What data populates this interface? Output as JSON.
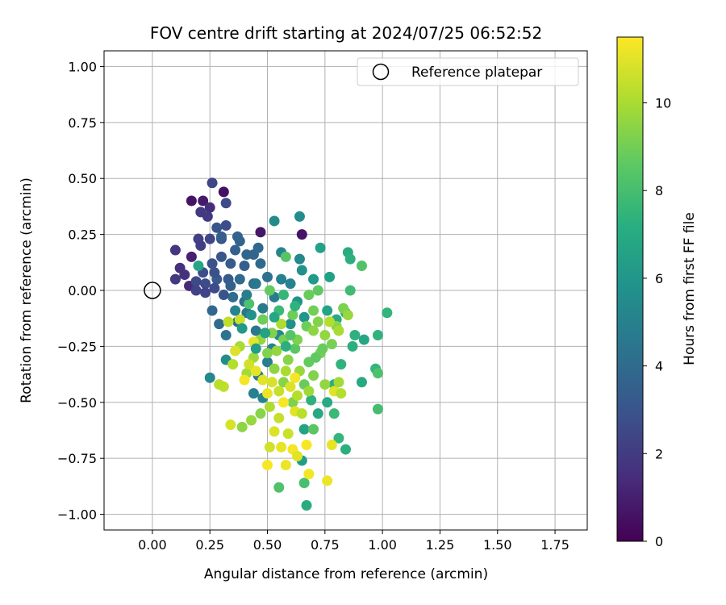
{
  "chart_data": {
    "type": "scatter",
    "title": "FOV centre drift starting at 2024/07/25 06:52:52",
    "xlabel": "Angular distance from reference (arcmin)",
    "ylabel": "Rotation from reference (arcmin)",
    "xlim": [
      -0.21,
      1.89
    ],
    "ylim": [
      -1.07,
      1.07
    ],
    "xticks": [
      0.0,
      0.25,
      0.5,
      0.75,
      1.0,
      1.25,
      1.5,
      1.75
    ],
    "xtick_labels": [
      "0.00",
      "0.25",
      "0.50",
      "0.75",
      "1.00",
      "1.25",
      "1.50",
      "1.75"
    ],
    "yticks": [
      1.0,
      0.75,
      0.5,
      0.25,
      0.0,
      -0.25,
      -0.5,
      -0.75,
      -1.0
    ],
    "ytick_labels": [
      "1.00",
      "0.75",
      "0.50",
      "0.25",
      "0.00",
      "−0.25",
      "−0.50",
      "−0.75",
      "−1.00"
    ],
    "grid": true,
    "legend": {
      "position": "top-right",
      "entries": [
        {
          "label": "Reference platepar",
          "marker": "open-circle"
        }
      ]
    },
    "reference_point": {
      "x": 0.0,
      "y": 0.0
    },
    "colorbar": {
      "label": "Hours from first FF file",
      "colormap": "viridis",
      "range": [
        0,
        11.5
      ],
      "ticks": [
        0,
        2,
        4,
        6,
        8,
        10
      ],
      "tick_labels": [
        "0",
        "2",
        "4",
        "6",
        "8",
        "10"
      ]
    },
    "points": [
      {
        "x": 0.17,
        "y": 0.4,
        "h": 0.6
      },
      {
        "x": 0.22,
        "y": 0.4,
        "h": 0.8
      },
      {
        "x": 0.31,
        "y": 0.44,
        "h": 0.5
      },
      {
        "x": 0.47,
        "y": 0.26,
        "h": 0.7
      },
      {
        "x": 0.65,
        "y": 0.25,
        "h": 0.6
      },
      {
        "x": 0.17,
        "y": 0.15,
        "h": 1.0
      },
      {
        "x": 0.16,
        "y": 0.02,
        "h": 1.3
      },
      {
        "x": 0.12,
        "y": 0.1,
        "h": 1.6
      },
      {
        "x": 0.1,
        "y": 0.18,
        "h": 1.8
      },
      {
        "x": 0.25,
        "y": 0.37,
        "h": 1.5
      },
      {
        "x": 0.24,
        "y": 0.33,
        "h": 2.0
      },
      {
        "x": 0.21,
        "y": 0.35,
        "h": 1.9
      },
      {
        "x": 0.26,
        "y": 0.48,
        "h": 2.4
      },
      {
        "x": 0.32,
        "y": 0.39,
        "h": 2.6
      },
      {
        "x": 0.2,
        "y": 0.23,
        "h": 2.2
      },
      {
        "x": 0.25,
        "y": 0.23,
        "h": 2.4
      },
      {
        "x": 0.21,
        "y": 0.2,
        "h": 2.1
      },
      {
        "x": 0.3,
        "y": 0.23,
        "h": 2.8
      },
      {
        "x": 0.32,
        "y": 0.29,
        "h": 2.7
      },
      {
        "x": 0.28,
        "y": 0.28,
        "h": 3.0
      },
      {
        "x": 0.1,
        "y": 0.05,
        "h": 1.9
      },
      {
        "x": 0.14,
        "y": 0.07,
        "h": 1.7
      },
      {
        "x": 0.19,
        "y": 0.0,
        "h": 2.3
      },
      {
        "x": 0.23,
        "y": 0.03,
        "h": 2.6
      },
      {
        "x": 0.26,
        "y": 0.12,
        "h": 2.9
      },
      {
        "x": 0.28,
        "y": 0.05,
        "h": 3.2
      },
      {
        "x": 0.33,
        "y": 0.05,
        "h": 3.3
      },
      {
        "x": 0.36,
        "y": 0.18,
        "h": 3.5
      },
      {
        "x": 0.38,
        "y": 0.22,
        "h": 3.6
      },
      {
        "x": 0.4,
        "y": 0.11,
        "h": 3.4
      },
      {
        "x": 0.44,
        "y": 0.16,
        "h": 3.7
      },
      {
        "x": 0.46,
        "y": 0.19,
        "h": 3.8
      },
      {
        "x": 0.44,
        "y": 0.03,
        "h": 4.0
      },
      {
        "x": 0.38,
        "y": 0.05,
        "h": 3.9
      },
      {
        "x": 0.35,
        "y": -0.03,
        "h": 4.1
      },
      {
        "x": 0.4,
        "y": -0.05,
        "h": 4.2
      },
      {
        "x": 0.26,
        "y": -0.09,
        "h": 3.8
      },
      {
        "x": 0.29,
        "y": -0.15,
        "h": 4.0
      },
      {
        "x": 0.32,
        "y": -0.2,
        "h": 4.4
      },
      {
        "x": 0.37,
        "y": -0.14,
        "h": 4.3
      },
      {
        "x": 0.41,
        "y": -0.1,
        "h": 4.5
      },
      {
        "x": 0.45,
        "y": -0.18,
        "h": 4.6
      },
      {
        "x": 0.48,
        "y": -0.08,
        "h": 4.7
      },
      {
        "x": 0.53,
        "y": -0.03,
        "h": 4.8
      },
      {
        "x": 0.56,
        "y": 0.05,
        "h": 5.0
      },
      {
        "x": 0.6,
        "y": 0.03,
        "h": 5.1
      },
      {
        "x": 0.56,
        "y": 0.17,
        "h": 5.2
      },
      {
        "x": 0.64,
        "y": 0.14,
        "h": 5.4
      },
      {
        "x": 0.64,
        "y": 0.33,
        "h": 5.6
      },
      {
        "x": 0.53,
        "y": 0.31,
        "h": 5.5
      },
      {
        "x": 0.65,
        "y": 0.09,
        "h": 5.8
      },
      {
        "x": 0.63,
        "y": -0.05,
        "h": 5.9
      },
      {
        "x": 0.66,
        "y": -0.12,
        "h": 6.0
      },
      {
        "x": 0.6,
        "y": -0.15,
        "h": 5.7
      },
      {
        "x": 0.55,
        "y": -0.2,
        "h": 5.3
      },
      {
        "x": 0.52,
        "y": -0.26,
        "h": 5.1
      },
      {
        "x": 0.5,
        "y": -0.32,
        "h": 4.9
      },
      {
        "x": 0.46,
        "y": -0.38,
        "h": 4.7
      },
      {
        "x": 0.44,
        "y": -0.46,
        "h": 5.0
      },
      {
        "x": 0.48,
        "y": -0.48,
        "h": 5.2
      },
      {
        "x": 0.25,
        "y": -0.39,
        "h": 5.4
      },
      {
        "x": 0.32,
        "y": -0.31,
        "h": 5.6
      },
      {
        "x": 0.7,
        "y": 0.05,
        "h": 6.2
      },
      {
        "x": 0.73,
        "y": 0.19,
        "h": 6.6
      },
      {
        "x": 0.77,
        "y": 0.06,
        "h": 6.5
      },
      {
        "x": 0.76,
        "y": -0.09,
        "h": 6.7
      },
      {
        "x": 0.8,
        "y": -0.13,
        "h": 6.9
      },
      {
        "x": 0.85,
        "y": 0.17,
        "h": 7.0
      },
      {
        "x": 0.86,
        "y": 0.14,
        "h": 7.2
      },
      {
        "x": 0.84,
        "y": -0.1,
        "h": 7.1
      },
      {
        "x": 0.88,
        "y": -0.2,
        "h": 7.3
      },
      {
        "x": 0.92,
        "y": -0.22,
        "h": 6.8
      },
      {
        "x": 0.98,
        "y": -0.2,
        "h": 7.4
      },
      {
        "x": 1.02,
        "y": -0.1,
        "h": 7.5
      },
      {
        "x": 0.97,
        "y": -0.35,
        "h": 7.6
      },
      {
        "x": 0.91,
        "y": -0.41,
        "h": 6.9
      },
      {
        "x": 0.87,
        "y": -0.25,
        "h": 7.2
      },
      {
        "x": 0.82,
        "y": -0.33,
        "h": 7.4
      },
      {
        "x": 0.79,
        "y": -0.42,
        "h": 7.1
      },
      {
        "x": 0.76,
        "y": -0.5,
        "h": 7.0
      },
      {
        "x": 0.72,
        "y": -0.55,
        "h": 6.9
      },
      {
        "x": 0.69,
        "y": -0.49,
        "h": 7.3
      },
      {
        "x": 0.66,
        "y": -0.62,
        "h": 6.6
      },
      {
        "x": 0.65,
        "y": -0.76,
        "h": 6.4
      },
      {
        "x": 0.67,
        "y": -0.96,
        "h": 7.0
      },
      {
        "x": 0.66,
        "y": -0.86,
        "h": 8.1
      },
      {
        "x": 0.55,
        "y": -0.88,
        "h": 8.3
      },
      {
        "x": 0.7,
        "y": -0.62,
        "h": 8.5
      },
      {
        "x": 0.79,
        "y": -0.55,
        "h": 7.8
      },
      {
        "x": 0.84,
        "y": -0.71,
        "h": 7.2
      },
      {
        "x": 0.81,
        "y": -0.66,
        "h": 7.6
      },
      {
        "x": 0.98,
        "y": -0.53,
        "h": 8.0
      },
      {
        "x": 0.98,
        "y": -0.37,
        "h": 8.2
      },
      {
        "x": 0.91,
        "y": 0.11,
        "h": 8.3
      },
      {
        "x": 0.86,
        "y": 0.0,
        "h": 7.9
      },
      {
        "x": 0.72,
        "y": 0.0,
        "h": 8.6
      },
      {
        "x": 0.68,
        "y": -0.02,
        "h": 8.8
      },
      {
        "x": 0.58,
        "y": 0.15,
        "h": 8.4
      },
      {
        "x": 0.51,
        "y": 0.0,
        "h": 8.7
      },
      {
        "x": 0.61,
        "y": -0.11,
        "h": 8.9
      },
      {
        "x": 0.57,
        "y": -0.22,
        "h": 9.1
      },
      {
        "x": 0.62,
        "y": -0.26,
        "h": 8.5
      },
      {
        "x": 0.68,
        "y": -0.32,
        "h": 8.7
      },
      {
        "x": 0.73,
        "y": -0.28,
        "h": 9.0
      },
      {
        "x": 0.66,
        "y": -0.42,
        "h": 8.8
      },
      {
        "x": 0.61,
        "y": -0.5,
        "h": 9.2
      },
      {
        "x": 0.57,
        "y": -0.41,
        "h": 9.4
      },
      {
        "x": 0.53,
        "y": -0.35,
        "h": 9.5
      },
      {
        "x": 0.5,
        "y": -0.28,
        "h": 9.3
      },
      {
        "x": 0.47,
        "y": -0.22,
        "h": 9.6
      },
      {
        "x": 0.44,
        "y": -0.3,
        "h": 9.8
      },
      {
        "x": 0.41,
        "y": -0.37,
        "h": 9.9
      },
      {
        "x": 0.38,
        "y": -0.25,
        "h": 10.0
      },
      {
        "x": 0.35,
        "y": -0.33,
        "h": 10.2
      },
      {
        "x": 0.31,
        "y": -0.43,
        "h": 10.4
      },
      {
        "x": 0.29,
        "y": -0.42,
        "h": 10.3
      },
      {
        "x": 0.34,
        "y": -0.6,
        "h": 10.8
      },
      {
        "x": 0.39,
        "y": -0.61,
        "h": 9.5
      },
      {
        "x": 0.43,
        "y": -0.58,
        "h": 9.7
      },
      {
        "x": 0.47,
        "y": -0.55,
        "h": 9.4
      },
      {
        "x": 0.51,
        "y": -0.52,
        "h": 10.1
      },
      {
        "x": 0.55,
        "y": -0.57,
        "h": 10.5
      },
      {
        "x": 0.53,
        "y": -0.63,
        "h": 10.9
      },
      {
        "x": 0.56,
        "y": -0.7,
        "h": 11.1
      },
      {
        "x": 0.61,
        "y": -0.71,
        "h": 11.3
      },
      {
        "x": 0.63,
        "y": -0.74,
        "h": 11.0
      },
      {
        "x": 0.58,
        "y": -0.78,
        "h": 11.2
      },
      {
        "x": 0.5,
        "y": -0.78,
        "h": 11.4
      },
      {
        "x": 0.51,
        "y": -0.7,
        "h": 10.7
      },
      {
        "x": 0.68,
        "y": -0.82,
        "h": 11.3
      },
      {
        "x": 0.76,
        "y": -0.85,
        "h": 11.2
      },
      {
        "x": 0.78,
        "y": -0.69,
        "h": 11.1
      },
      {
        "x": 0.67,
        "y": -0.69,
        "h": 11.4
      },
      {
        "x": 0.59,
        "y": -0.64,
        "h": 10.6
      },
      {
        "x": 0.62,
        "y": -0.54,
        "h": 11.0
      },
      {
        "x": 0.65,
        "y": -0.55,
        "h": 10.3
      },
      {
        "x": 0.63,
        "y": -0.47,
        "h": 10.2
      },
      {
        "x": 0.68,
        "y": -0.45,
        "h": 9.8
      },
      {
        "x": 0.75,
        "y": -0.42,
        "h": 9.6
      },
      {
        "x": 0.79,
        "y": -0.45,
        "h": 11.0
      },
      {
        "x": 0.82,
        "y": -0.46,
        "h": 10.2
      },
      {
        "x": 0.81,
        "y": -0.41,
        "h": 9.9
      },
      {
        "x": 0.7,
        "y": -0.38,
        "h": 9.3
      },
      {
        "x": 0.64,
        "y": -0.36,
        "h": 9.7
      },
      {
        "x": 0.59,
        "y": -0.31,
        "h": 9.4
      },
      {
        "x": 0.63,
        "y": -0.22,
        "h": 9.2
      },
      {
        "x": 0.67,
        "y": -0.16,
        "h": 8.9
      },
      {
        "x": 0.7,
        "y": -0.09,
        "h": 9.0
      },
      {
        "x": 0.72,
        "y": -0.14,
        "h": 9.3
      },
      {
        "x": 0.75,
        "y": -0.2,
        "h": 9.6
      },
      {
        "x": 0.78,
        "y": -0.24,
        "h": 9.1
      },
      {
        "x": 0.8,
        "y": -0.16,
        "h": 9.4
      },
      {
        "x": 0.83,
        "y": -0.08,
        "h": 9.2
      },
      {
        "x": 0.85,
        "y": -0.11,
        "h": 9.7
      },
      {
        "x": 0.81,
        "y": -0.18,
        "h": 10.0
      },
      {
        "x": 0.77,
        "y": -0.14,
        "h": 10.2
      },
      {
        "x": 0.74,
        "y": -0.26,
        "h": 8.8
      },
      {
        "x": 0.71,
        "y": -0.3,
        "h": 8.6
      },
      {
        "x": 0.56,
        "y": -0.15,
        "h": 10.1
      },
      {
        "x": 0.52,
        "y": -0.19,
        "h": 9.3
      },
      {
        "x": 0.48,
        "y": -0.13,
        "h": 8.9
      },
      {
        "x": 0.42,
        "y": -0.06,
        "h": 8.2
      },
      {
        "x": 0.38,
        "y": -0.13,
        "h": 10.6
      },
      {
        "x": 0.33,
        "y": -0.14,
        "h": 10.4
      },
      {
        "x": 0.36,
        "y": -0.27,
        "h": 10.9
      },
      {
        "x": 0.4,
        "y": -0.4,
        "h": 11.3
      },
      {
        "x": 0.42,
        "y": -0.33,
        "h": 10.7
      },
      {
        "x": 0.45,
        "y": -0.36,
        "h": 11.1
      },
      {
        "x": 0.48,
        "y": -0.4,
        "h": 11.0
      },
      {
        "x": 0.5,
        "y": -0.46,
        "h": 11.2
      },
      {
        "x": 0.52,
        "y": -0.41,
        "h": 10.8
      },
      {
        "x": 0.55,
        "y": -0.45,
        "h": 10.5
      },
      {
        "x": 0.57,
        "y": -0.5,
        "h": 11.4
      },
      {
        "x": 0.6,
        "y": -0.43,
        "h": 10.9
      },
      {
        "x": 0.62,
        "y": -0.39,
        "h": 11.3
      },
      {
        "x": 0.44,
        "y": -0.23,
        "h": 11.1
      },
      {
        "x": 0.54,
        "y": -0.27,
        "h": 9.6
      },
      {
        "x": 0.58,
        "y": -0.36,
        "h": 10.0
      },
      {
        "x": 0.7,
        "y": -0.18,
        "h": 9.5
      },
      {
        "x": 0.6,
        "y": -0.2,
        "h": 8.4
      },
      {
        "x": 0.55,
        "y": -0.09,
        "h": 7.8
      },
      {
        "x": 0.57,
        "y": -0.02,
        "h": 7.6
      },
      {
        "x": 0.62,
        "y": -0.07,
        "h": 7.4
      },
      {
        "x": 0.58,
        "y": -0.25,
        "h": 7.2
      },
      {
        "x": 0.53,
        "y": -0.12,
        "h": 6.8
      },
      {
        "x": 0.49,
        "y": -0.19,
        "h": 6.6
      },
      {
        "x": 0.45,
        "y": -0.26,
        "h": 6.4
      },
      {
        "x": 0.43,
        "y": -0.11,
        "h": 5.8
      },
      {
        "x": 0.39,
        "y": -0.17,
        "h": 6.1
      },
      {
        "x": 0.36,
        "y": -0.09,
        "h": 5.2
      },
      {
        "x": 0.41,
        "y": -0.02,
        "h": 4.9
      },
      {
        "x": 0.45,
        "y": 0.03,
        "h": 4.6
      },
      {
        "x": 0.5,
        "y": 0.06,
        "h": 4.3
      },
      {
        "x": 0.47,
        "y": 0.12,
        "h": 3.9
      },
      {
        "x": 0.41,
        "y": 0.16,
        "h": 3.7
      },
      {
        "x": 0.34,
        "y": 0.12,
        "h": 3.3
      },
      {
        "x": 0.3,
        "y": 0.15,
        "h": 3.1
      },
      {
        "x": 0.27,
        "y": 0.08,
        "h": 2.9
      },
      {
        "x": 0.22,
        "y": 0.08,
        "h": 2.7
      },
      {
        "x": 0.19,
        "y": 0.04,
        "h": 2.5
      },
      {
        "x": 0.23,
        "y": -0.01,
        "h": 2.3
      },
      {
        "x": 0.27,
        "y": 0.01,
        "h": 2.6
      },
      {
        "x": 0.31,
        "y": -0.02,
        "h": 3.0
      },
      {
        "x": 0.34,
        "y": 0.02,
        "h": 3.5
      },
      {
        "x": 0.2,
        "y": 0.11,
        "h": 6.8
      },
      {
        "x": 0.3,
        "y": 0.24,
        "h": 3.4
      },
      {
        "x": 0.37,
        "y": 0.24,
        "h": 3.6
      }
    ]
  }
}
